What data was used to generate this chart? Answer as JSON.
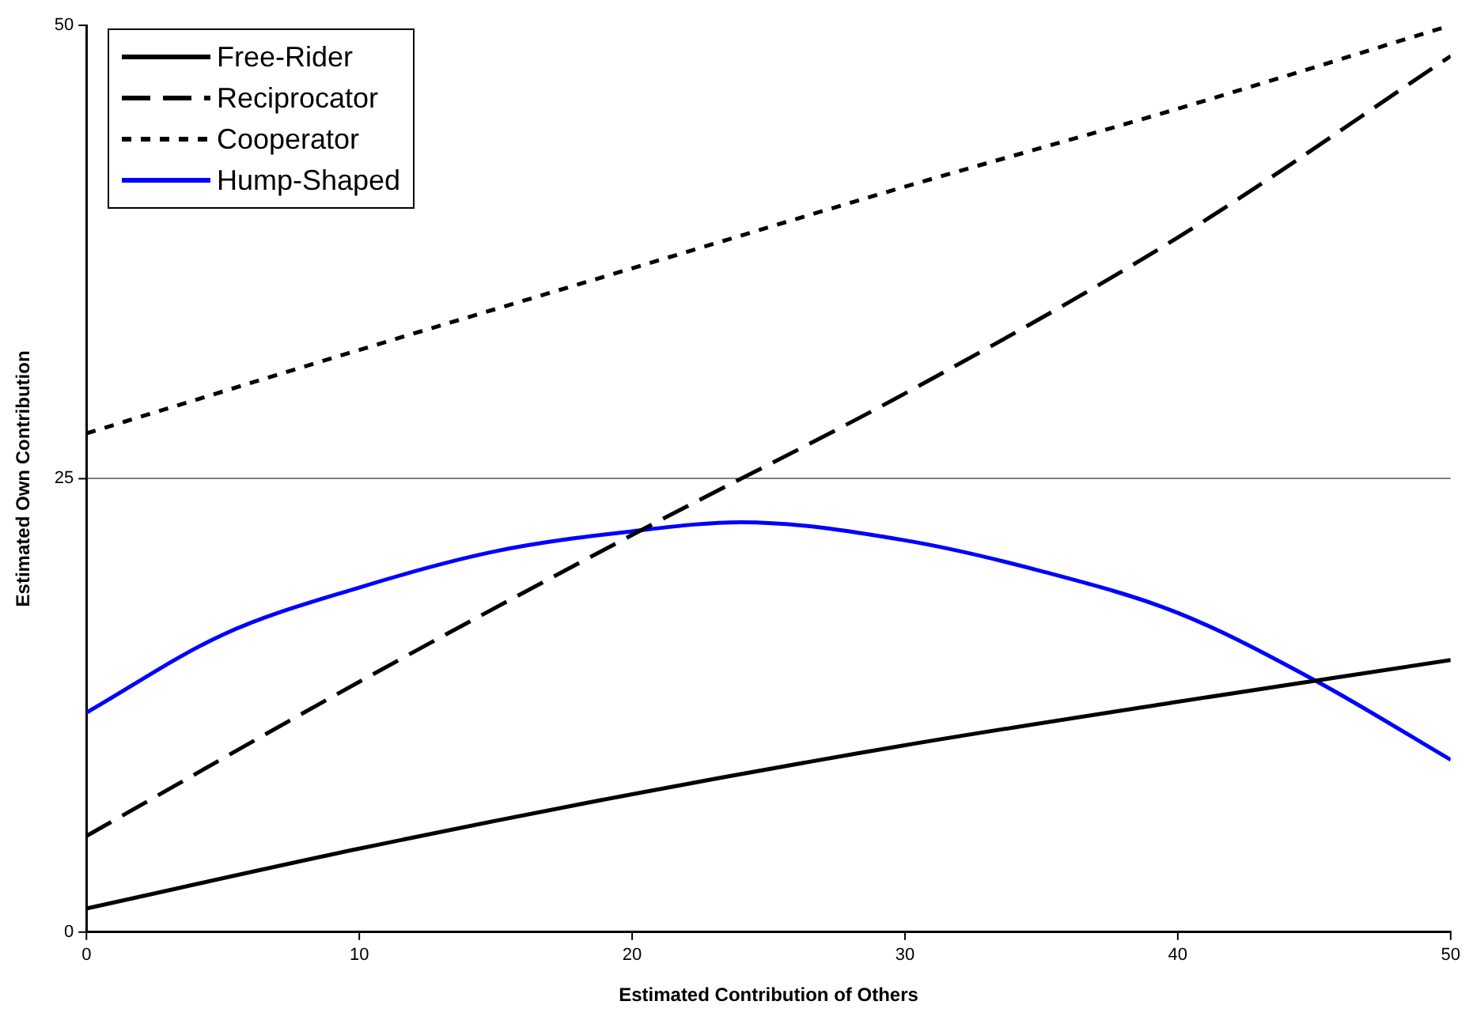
{
  "chart_data": {
    "type": "line",
    "xlabel": "Estimated Contribution of Others",
    "ylabel": "Estimated Own Contribution",
    "xlim": [
      0,
      50
    ],
    "xticks": [
      0,
      10,
      20,
      30,
      40,
      50
    ],
    "ylim": [
      0,
      50
    ],
    "yticks": [
      0,
      25,
      50
    ],
    "grid": "y",
    "legend": "top left",
    "marker": "none",
    "series": [
      {
        "name": "Free-Rider",
        "color": "#000000",
        "line_style": "solid",
        "x": [
          0,
          10,
          20,
          30,
          40,
          50
        ],
        "values": [
          1.3,
          4.6,
          7.6,
          10.3,
          12.7,
          15.0
        ]
      },
      {
        "name": "Reciprocator",
        "color": "#000000",
        "line_style": "dashed",
        "x": [
          0,
          10,
          20,
          30,
          40,
          50
        ],
        "values": [
          5.3,
          13.8,
          21.9,
          29.7,
          38.3,
          48.3
        ]
      },
      {
        "name": "Cooperator",
        "color": "#000000",
        "line_style": "dotted",
        "x": [
          0,
          10,
          20,
          30,
          40,
          50
        ],
        "values": [
          27.5,
          32.1,
          36.6,
          41.1,
          45.4,
          50
        ]
      },
      {
        "name": "Hump-Shaped",
        "color": "#0000ff",
        "line_style": "solid",
        "x": [
          0,
          5,
          10,
          15,
          20,
          24,
          30,
          35,
          40,
          45,
          50
        ],
        "values": [
          12.1,
          16.4,
          19.0,
          21.0,
          22.1,
          22.6,
          21.6,
          19.9,
          17.6,
          13.9,
          9.5
        ]
      }
    ]
  }
}
